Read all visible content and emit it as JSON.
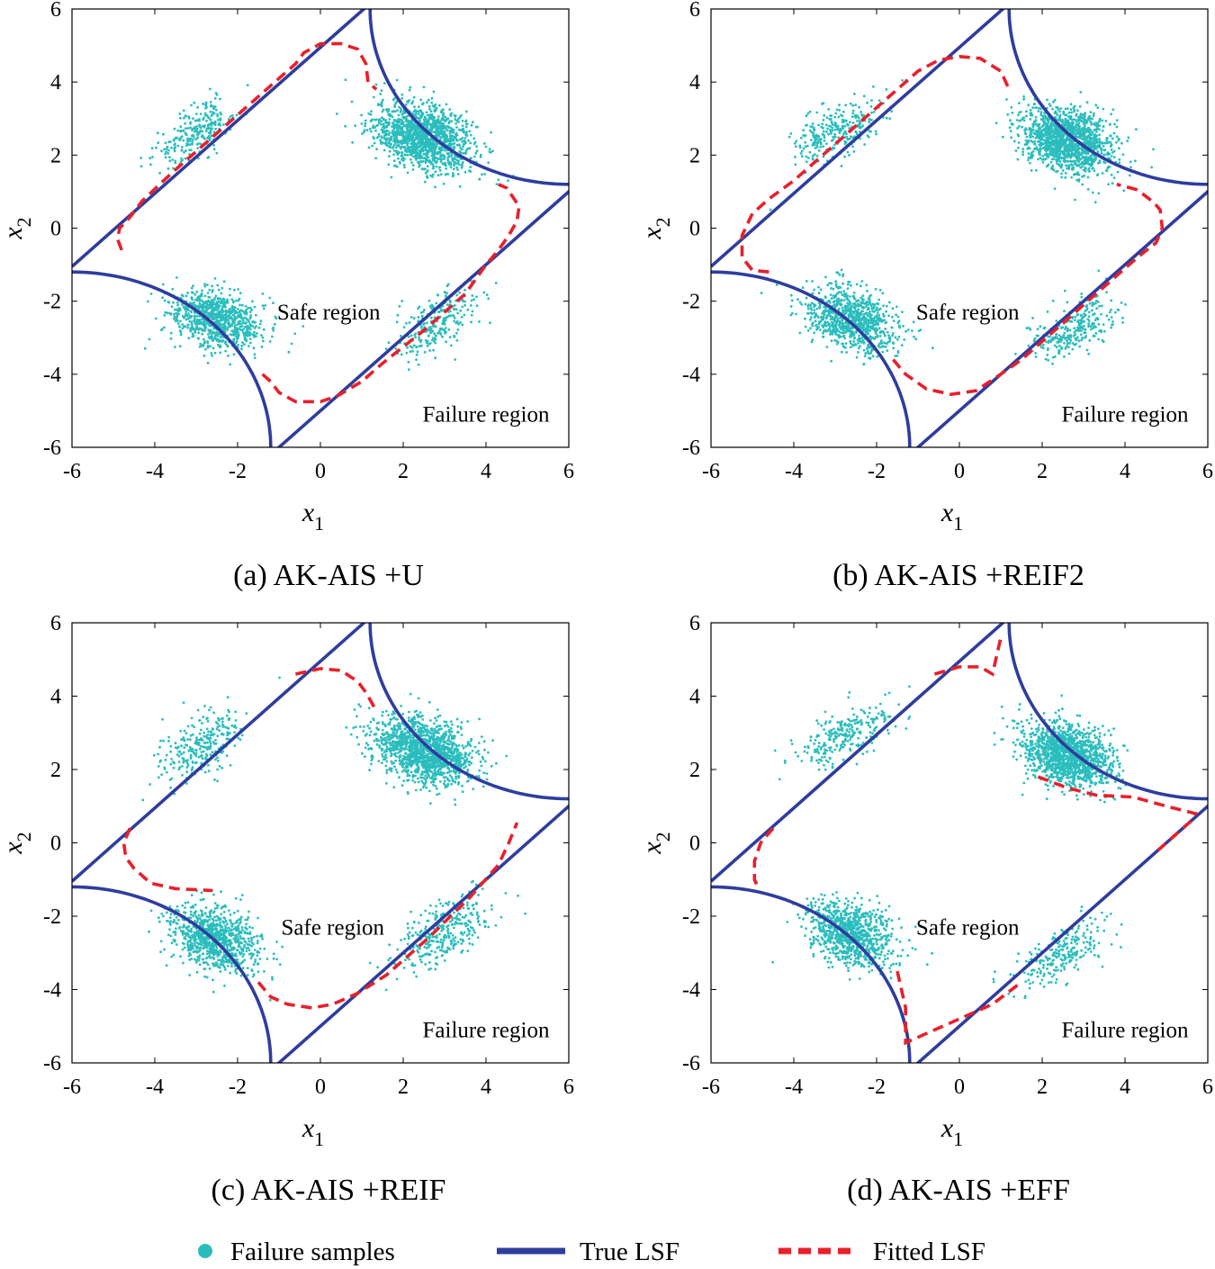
{
  "legend": {
    "samples": "Failure samples",
    "true_lsf": "True LSF",
    "fitted_lsf": "Fitted LSF"
  },
  "colors": {
    "samples": "#2bbdbd",
    "true_lsf": "#2e3d9e",
    "fitted_lsf": "#e8202a",
    "axes": "#000000"
  },
  "chart_data": [
    {
      "type": "scatter",
      "caption": "(a) AK-AIS +U",
      "xlabel": "x",
      "xlabel_sub": "1",
      "ylabel": "x",
      "ylabel_sub": "2",
      "xlim": [
        -6,
        6
      ],
      "ylim": [
        -6,
        6
      ],
      "xticks": [
        -6,
        -4,
        -2,
        0,
        2,
        4,
        6
      ],
      "yticks": [
        -6,
        -4,
        -2,
        0,
        2,
        4,
        6
      ],
      "safe_label": "Safe region",
      "failure_label": "Failure region",
      "safe_label_at": [
        0.2,
        -2.5
      ],
      "failure_label_at": [
        4,
        -5.3
      ],
      "clusters": [
        {
          "cx": 2.5,
          "cy": 2.5,
          "n": 1400,
          "sx": 0.6,
          "sy": 0.45,
          "rho": -0.3
        },
        {
          "cx": -2.5,
          "cy": -2.5,
          "n": 900,
          "sx": 0.55,
          "sy": 0.4,
          "rho": -0.3
        },
        {
          "cx": -3.0,
          "cy": 2.6,
          "n": 260,
          "sx": 0.5,
          "sy": 0.45,
          "rho": 0.6
        },
        {
          "cx": 2.8,
          "cy": -2.6,
          "n": 260,
          "sx": 0.5,
          "sy": 0.45,
          "rho": 0.6
        }
      ],
      "fitted_lsf": [
        [
          -4.8,
          -0.6
        ],
        [
          -4.9,
          -0.3
        ],
        [
          -4.85,
          0
        ],
        [
          -4.6,
          0.3
        ],
        [
          -4.3,
          0.75
        ],
        [
          -3.6,
          1.5
        ],
        [
          -2.6,
          2.5
        ],
        [
          -1.2,
          3.9
        ],
        [
          -0.6,
          4.5
        ],
        [
          -0.4,
          4.8
        ],
        [
          0,
          5.05
        ],
        [
          0.5,
          5.05
        ],
        [
          0.9,
          4.9
        ],
        [
          1.1,
          4.5
        ],
        [
          1.15,
          4.0
        ],
        [
          1.35,
          3.8
        ]
      ],
      "fitted_lsf_2": [
        [
          -1.4,
          -4.0
        ],
        [
          -1.2,
          -4.2
        ],
        [
          -1.0,
          -4.5
        ],
        [
          -0.6,
          -4.75
        ],
        [
          0,
          -4.75
        ],
        [
          0.4,
          -4.6
        ],
        [
          1.0,
          -4.2
        ],
        [
          1.5,
          -3.7
        ],
        [
          2.5,
          -2.8
        ],
        [
          3.5,
          -1.8
        ],
        [
          4.0,
          -1.0
        ],
        [
          4.3,
          -0.6
        ],
        [
          4.55,
          -0.2
        ],
        [
          4.75,
          0.2
        ],
        [
          4.8,
          0.6
        ],
        [
          4.5,
          1.1
        ],
        [
          4.3,
          1.2
        ]
      ]
    },
    {
      "type": "scatter",
      "caption": "(b) AK-AIS +REIF2",
      "xlabel": "x",
      "xlabel_sub": "1",
      "ylabel": "x",
      "ylabel_sub": "2",
      "xlim": [
        -6,
        6
      ],
      "ylim": [
        -6,
        6
      ],
      "xticks": [
        -6,
        -4,
        -2,
        0,
        2,
        4,
        6
      ],
      "yticks": [
        -6,
        -4,
        -2,
        0,
        2,
        4,
        6
      ],
      "safe_label": "Safe region",
      "failure_label": "Failure region",
      "safe_label_at": [
        0.2,
        -2.5
      ],
      "failure_label_at": [
        4,
        -5.3
      ],
      "clusters": [
        {
          "cx": 2.6,
          "cy": 2.4,
          "n": 1400,
          "sx": 0.55,
          "sy": 0.45,
          "rho": -0.3
        },
        {
          "cx": -2.6,
          "cy": -2.5,
          "n": 900,
          "sx": 0.55,
          "sy": 0.45,
          "rho": -0.3
        },
        {
          "cx": -3.0,
          "cy": 2.6,
          "n": 280,
          "sx": 0.55,
          "sy": 0.45,
          "rho": 0.6
        },
        {
          "cx": 2.8,
          "cy": -2.7,
          "n": 280,
          "sx": 0.5,
          "sy": 0.45,
          "rho": 0.6
        }
      ],
      "fitted_lsf": [
        [
          -4.6,
          -1.2
        ],
        [
          -5.0,
          -1.15
        ],
        [
          -5.25,
          -0.8
        ],
        [
          -5.25,
          -0.2
        ],
        [
          -5.0,
          0.4
        ],
        [
          -4.6,
          0.8
        ],
        [
          -4.0,
          1.3
        ],
        [
          -2.6,
          2.7
        ],
        [
          -1.0,
          4.3
        ],
        [
          -0.5,
          4.6
        ],
        [
          0,
          4.7
        ],
        [
          0.5,
          4.65
        ],
        [
          1.0,
          4.3
        ],
        [
          1.2,
          3.8
        ]
      ],
      "fitted_lsf_2": [
        [
          -1.6,
          -3.6
        ],
        [
          -1.3,
          -4.0
        ],
        [
          -0.8,
          -4.4
        ],
        [
          -0.2,
          -4.55
        ],
        [
          0.4,
          -4.45
        ],
        [
          1.0,
          -4.0
        ],
        [
          1.5,
          -3.6
        ],
        [
          2.5,
          -2.6
        ],
        [
          3.5,
          -1.6
        ],
        [
          4.3,
          -0.8
        ],
        [
          4.75,
          -0.4
        ],
        [
          4.9,
          0
        ],
        [
          4.85,
          0.5
        ],
        [
          4.7,
          0.7
        ],
        [
          4.3,
          1.05
        ],
        [
          3.8,
          1.2
        ]
      ]
    },
    {
      "type": "scatter",
      "caption": "(c) AK-AIS +REIF",
      "xlabel": "x",
      "xlabel_sub": "1",
      "ylabel": "x",
      "ylabel_sub": "2",
      "xlim": [
        -6,
        6
      ],
      "ylim": [
        -6,
        6
      ],
      "xticks": [
        -6,
        -4,
        -2,
        0,
        2,
        4,
        6
      ],
      "yticks": [
        -6,
        -4,
        -2,
        0,
        2,
        4,
        6
      ],
      "safe_label": "Safe region",
      "failure_label": "Failure region",
      "safe_label_at": [
        0.3,
        -2.5
      ],
      "failure_label_at": [
        4,
        -5.3
      ],
      "clusters": [
        {
          "cx": 2.5,
          "cy": 2.5,
          "n": 1400,
          "sx": 0.6,
          "sy": 0.45,
          "rho": -0.3
        },
        {
          "cx": -2.6,
          "cy": -2.6,
          "n": 900,
          "sx": 0.55,
          "sy": 0.45,
          "rho": -0.3
        },
        {
          "cx": -2.9,
          "cy": 2.7,
          "n": 280,
          "sx": 0.55,
          "sy": 0.5,
          "rho": 0.6
        },
        {
          "cx": 3.0,
          "cy": -2.4,
          "n": 320,
          "sx": 0.6,
          "sy": 0.5,
          "rho": 0.6
        }
      ],
      "fitted_lsf": [
        [
          -4.6,
          0.4
        ],
        [
          -4.75,
          0.0
        ],
        [
          -4.7,
          -0.4
        ],
        [
          -4.5,
          -0.7
        ],
        [
          -4.1,
          -1.1
        ],
        [
          -3.5,
          -1.25
        ],
        [
          -2.6,
          -1.3
        ]
      ],
      "fitted_lsf_2": [
        [
          -1.5,
          -3.8
        ],
        [
          -1.2,
          -4.2
        ],
        [
          -0.8,
          -4.4
        ],
        [
          -0.2,
          -4.5
        ],
        [
          0.3,
          -4.4
        ],
        [
          0.9,
          -4.1
        ],
        [
          1.6,
          -3.6
        ],
        [
          2.6,
          -2.6
        ],
        [
          3.6,
          -1.5
        ],
        [
          4.3,
          -0.6
        ],
        [
          4.55,
          0
        ],
        [
          4.75,
          0.55
        ]
      ],
      "fitted_lsf_3": [
        [
          -0.6,
          4.6
        ],
        [
          0,
          4.75
        ],
        [
          0.5,
          4.7
        ],
        [
          0.9,
          4.4
        ],
        [
          1.1,
          4.1
        ],
        [
          1.3,
          3.7
        ]
      ]
    },
    {
      "type": "scatter",
      "caption": "(d) AK-AIS +EFF",
      "xlabel": "x",
      "xlabel_sub": "1",
      "ylabel": "x",
      "ylabel_sub": "2",
      "xlim": [
        -6,
        6
      ],
      "ylim": [
        -6,
        6
      ],
      "xticks": [
        -6,
        -4,
        -2,
        0,
        2,
        4,
        6
      ],
      "yticks": [
        -6,
        -4,
        -2,
        0,
        2,
        4,
        6
      ],
      "safe_label": "Safe region",
      "failure_label": "Failure region",
      "safe_label_at": [
        0.2,
        -2.5
      ],
      "failure_label_at": [
        4,
        -5.3
      ],
      "clusters": [
        {
          "cx": 2.6,
          "cy": 2.4,
          "n": 1400,
          "sx": 0.55,
          "sy": 0.45,
          "rho": -0.3
        },
        {
          "cx": -2.6,
          "cy": -2.5,
          "n": 900,
          "sx": 0.5,
          "sy": 0.45,
          "rho": -0.3
        },
        {
          "cx": -2.8,
          "cy": 2.9,
          "n": 260,
          "sx": 0.55,
          "sy": 0.45,
          "rho": 0.6
        },
        {
          "cx": 2.5,
          "cy": -3.0,
          "n": 240,
          "sx": 0.55,
          "sy": 0.45,
          "rho": 0.6
        }
      ],
      "fitted_lsf": [
        [
          -4.5,
          0.4
        ],
        [
          -4.8,
          0
        ],
        [
          -4.95,
          -0.5
        ],
        [
          -4.95,
          -1.0
        ],
        [
          -4.85,
          -1.25
        ]
      ],
      "fitted_lsf_2": [
        [
          -1.5,
          -3.5
        ],
        [
          -1.3,
          -4.5
        ],
        [
          -1.3,
          -5.45
        ],
        [
          -0.8,
          -5.2
        ],
        [
          0,
          -4.8
        ],
        [
          0.8,
          -4.4
        ],
        [
          1.5,
          -3.8
        ]
      ],
      "fitted_lsf_3": [
        [
          -0.6,
          4.6
        ],
        [
          0,
          4.8
        ],
        [
          0.5,
          4.8
        ],
        [
          0.8,
          4.6
        ],
        [
          1.0,
          5.6
        ]
      ],
      "fitted_lsf_4": [
        [
          1.9,
          1.8
        ],
        [
          2.6,
          1.5
        ],
        [
          3.3,
          1.3
        ],
        [
          4.2,
          1.25
        ],
        [
          5.0,
          1.0
        ],
        [
          5.7,
          0.8
        ],
        [
          5.6,
          0.6
        ],
        [
          5.2,
          0.2
        ],
        [
          4.8,
          -0.2
        ]
      ]
    }
  ]
}
